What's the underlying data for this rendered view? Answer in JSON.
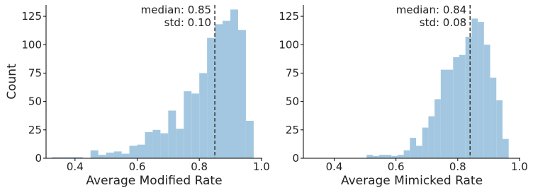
{
  "chart_data": [
    {
      "type": "histogram",
      "xlabel": "Average Modified Rate",
      "ylabel": "Count",
      "color": "#a3c7e0",
      "bins": [
        0.325,
        0.35,
        0.375,
        0.4,
        0.425,
        0.45,
        0.475,
        0.5,
        0.525,
        0.55,
        0.575,
        0.6,
        0.625,
        0.65,
        0.675,
        0.7,
        0.725,
        0.75,
        0.775,
        0.8,
        0.825,
        0.85,
        0.875,
        0.9,
        0.925,
        0.95,
        0.975
      ],
      "values": [
        1,
        1,
        1,
        1,
        0,
        7,
        3,
        5,
        6,
        4,
        11,
        12,
        23,
        25,
        22,
        42,
        26,
        59,
        57,
        75,
        106,
        118,
        121,
        131,
        113,
        33
      ],
      "median": 0.85,
      "annotations": [
        "median: 0.85",
        "std: 0.10"
      ],
      "xlim": [
        0.3,
        1.03
      ],
      "xticks": [
        0.4,
        0.6,
        0.8,
        {
          "value": 1,
          "label": "1.0"
        }
      ],
      "ylim": [
        0,
        135
      ],
      "yticks": [
        0,
        25,
        50,
        75,
        100,
        125
      ]
    },
    {
      "type": "histogram",
      "xlabel": "Average Mimicked Rate",
      "color": "#a3c7e0",
      "bins": [
        0.505,
        0.525,
        0.545,
        0.565,
        0.585,
        0.605,
        0.625,
        0.645,
        0.665,
        0.685,
        0.705,
        0.725,
        0.745,
        0.765,
        0.785,
        0.805,
        0.825,
        0.845,
        0.865,
        0.885,
        0.905,
        0.925,
        0.945,
        0.965
      ],
      "values": [
        3,
        2,
        3,
        3,
        2,
        3,
        7,
        18,
        11,
        27,
        37,
        52,
        78,
        78,
        89,
        91,
        107,
        123,
        120,
        100,
        71,
        51,
        17
      ],
      "median": 0.84,
      "annotations": [
        "median: 0.84",
        "std: 0.08"
      ],
      "xlim": [
        0.3,
        1.03
      ],
      "xticks": [
        0.4,
        0.6,
        0.8,
        {
          "value": 1,
          "label": "1.0"
        }
      ],
      "ylim": [
        0,
        135
      ],
      "yticks": [
        0,
        25,
        50,
        75,
        100,
        125
      ]
    }
  ]
}
